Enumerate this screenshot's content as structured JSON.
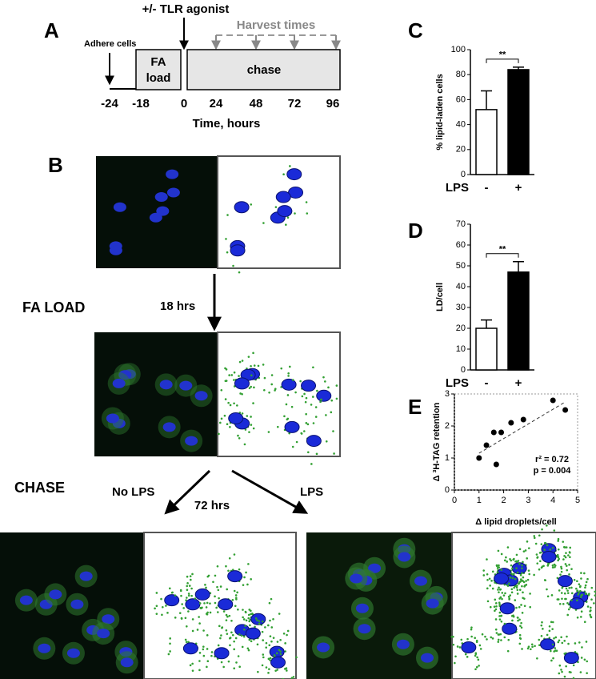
{
  "timeline": {
    "label": "A",
    "agonist": "+/- TLR agonist",
    "harvest": "Harvest times",
    "adhere": "Adhere cells",
    "fa_load": [
      "FA",
      "load"
    ],
    "chase": "chase",
    "ticks": [
      "-24",
      "-18",
      "0",
      "24",
      "48",
      "72",
      "96"
    ],
    "axis_label": "Time, hours"
  },
  "imaging": {
    "label": "B",
    "fa_load": "FA LOAD",
    "fa_time": "18 hrs",
    "chase": "CHASE",
    "no_lps": "No LPS",
    "chase_time": "72 hrs",
    "lps": "LPS"
  },
  "chart_data": [
    {
      "type": "bar",
      "label": "C",
      "ylabel": "% lipid-laden cells",
      "xlabel": "LPS",
      "categories": [
        "-",
        "+"
      ],
      "values": [
        52,
        84
      ],
      "errors": [
        15,
        2
      ],
      "colors": [
        "#ffffff",
        "#000000"
      ],
      "ylim": [
        0,
        100
      ],
      "yticks": [
        0,
        20,
        40,
        60,
        80,
        100
      ],
      "annotation": "**"
    },
    {
      "type": "bar",
      "label": "D",
      "ylabel": "LD/cell",
      "xlabel": "LPS",
      "categories": [
        "-",
        "+"
      ],
      "values": [
        20,
        47
      ],
      "errors": [
        4,
        5
      ],
      "colors": [
        "#ffffff",
        "#000000"
      ],
      "ylim": [
        0,
        70
      ],
      "yticks": [
        0,
        10,
        20,
        30,
        40,
        50,
        60,
        70
      ],
      "annotation": "**"
    },
    {
      "type": "scatter",
      "label": "E",
      "xlabel": "Δ lipid droplets/cell",
      "ylabel": "Δ ³H-TAG retention",
      "x": [
        1,
        1.3,
        1.6,
        1.9,
        2.3,
        2.8,
        1.7,
        4,
        4.5
      ],
      "values": [
        1,
        1.4,
        1.8,
        1.8,
        2.1,
        2.2,
        0.8,
        2.8,
        2.5
      ],
      "trend_line": {
        "x": [
          1,
          4.5
        ],
        "y": [
          1.15,
          2.75
        ]
      },
      "xlim": [
        0,
        5
      ],
      "xticks": [
        0,
        1,
        2,
        3,
        4,
        5
      ],
      "ylim": [
        0,
        3
      ],
      "yticks": [
        0,
        1,
        2,
        3
      ],
      "annotations": [
        "r² = 0.72",
        "p = 0.004"
      ]
    }
  ]
}
